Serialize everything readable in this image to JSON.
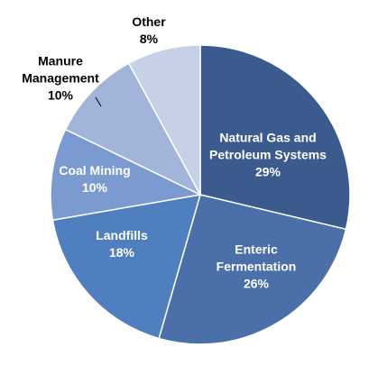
{
  "chart_data": {
    "type": "pie",
    "categories": [
      "Natural Gas and Petroleum Systems",
      "Enteric Fermentation",
      "Landfills",
      "Coal Mining",
      "Manure Management",
      "Other"
    ],
    "values": [
      29,
      26,
      18,
      10,
      10,
      8
    ],
    "value_labels": [
      "29%",
      "26%",
      "18%",
      "10%",
      "10%",
      "8%"
    ],
    "colors": [
      "#3b5b8e",
      "#4a6fa9",
      "#4f7fbe",
      "#7b9bd0",
      "#a2b4d9",
      "#c6d0e6"
    ]
  }
}
